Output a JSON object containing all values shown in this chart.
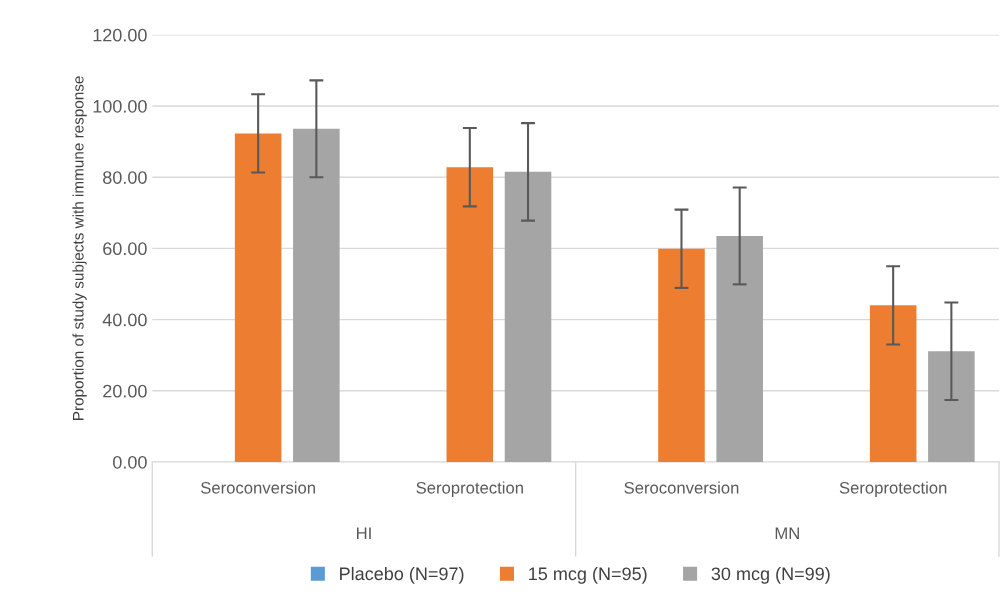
{
  "chart_data": {
    "type": "bar",
    "ylabel": "Proportion of study subjects with immune response",
    "categories": [
      "Seroconversion",
      "Seroprotection",
      "Seroconversion",
      "Seroprotection"
    ],
    "series": [
      {
        "name": "Placebo (N=97)",
        "color": "#5b9bd5",
        "values": [
          0,
          0,
          0,
          0
        ]
      },
      {
        "name": "15 mcg (N=95)",
        "color": "#ed7d31",
        "values": [
          92.3,
          82.8,
          59.9,
          44.0
        ],
        "errors": [
          11,
          11,
          11,
          11
        ]
      },
      {
        "name": "30 mcg (N=99)",
        "color": "#a5a5a5",
        "values": [
          93.6,
          81.5,
          63.5,
          31.1
        ],
        "errors": [
          13.6,
          13.7,
          13.6,
          13.7
        ]
      }
    ],
    "annotations": [
      "HI",
      "MN"
    ],
    "ylim": [
      0,
      120
    ],
    "yticks": [
      {
        "value": 0,
        "label": "0.00"
      },
      {
        "value": 20,
        "label": "20.00"
      },
      {
        "value": 40,
        "label": "40.00"
      },
      {
        "value": 60,
        "label": "60.00"
      },
      {
        "value": 80,
        "label": "80.00"
      },
      {
        "value": 100,
        "label": "100.00"
      },
      {
        "value": 120,
        "label": "120.00"
      }
    ],
    "grid": "y",
    "legend": "bottom"
  }
}
